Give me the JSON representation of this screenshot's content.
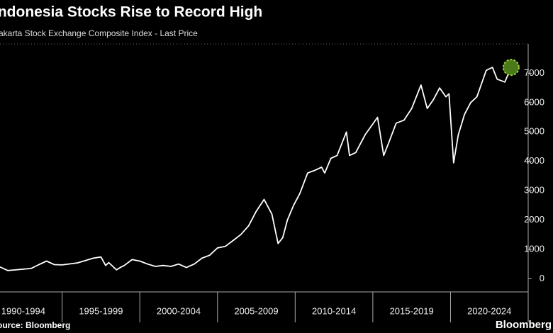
{
  "chart_data": {
    "type": "line",
    "title": "Indonesia Stocks Rise to Record High",
    "subtitle": "Jakarta Stock Exchange Composite Index - Last Price",
    "source": "Source: Bloomberg",
    "brand": "Bloomberg",
    "color": "#ffffff",
    "highlight_color": "#4a7a1a",
    "categories": [
      "1990-1994",
      "1995-1999",
      "2000-2004",
      "2005-2009",
      "2010-2014",
      "2015-2019",
      "2020-2024"
    ],
    "xticks": [
      1990,
      1995,
      2000,
      2005,
      2010,
      2015,
      2020,
      2025
    ],
    "xlim": [
      1991,
      2025
    ],
    "ylim": [
      -450,
      8000
    ],
    "yticks": [
      0,
      1000,
      2000,
      3000,
      4000,
      5000,
      6000,
      7000
    ],
    "x": [
      1991.0,
      1991.5,
      1992.0,
      1993.0,
      1993.5,
      1994.0,
      1994.5,
      1995.0,
      1996.0,
      1997.0,
      1997.5,
      1997.8,
      1998.0,
      1998.5,
      1998.8,
      1999.0,
      1999.5,
      2000.0,
      2000.5,
      2001.0,
      2001.5,
      2002.0,
      2002.5,
      2003.0,
      2003.5,
      2004.0,
      2004.5,
      2005.0,
      2005.5,
      2006.0,
      2006.5,
      2007.0,
      2007.5,
      2008.0,
      2008.2,
      2008.5,
      2008.9,
      2009.2,
      2009.5,
      2009.9,
      2010.3,
      2010.8,
      2011.3,
      2011.7,
      2011.9,
      2012.3,
      2012.7,
      2013.3,
      2013.5,
      2013.9,
      2014.5,
      2014.9,
      2015.3,
      2015.7,
      2016.0,
      2016.5,
      2017.0,
      2017.5,
      2018.1,
      2018.5,
      2018.9,
      2019.3,
      2019.7,
      2019.9,
      2020.2,
      2020.5,
      2020.9,
      2021.3,
      2021.7,
      2022.3,
      2022.7,
      2023.0,
      2023.5,
      2023.9
    ],
    "values": [
      400,
      280,
      300,
      350,
      480,
      600,
      480,
      470,
      540,
      700,
      740,
      450,
      550,
      300,
      400,
      450,
      650,
      600,
      500,
      420,
      450,
      420,
      500,
      380,
      500,
      700,
      800,
      1050,
      1100,
      1300,
      1500,
      1800,
      2300,
      2700,
      2500,
      2200,
      1200,
      1400,
      2000,
      2500,
      2900,
      3600,
      3700,
      3800,
      3600,
      4100,
      4200,
      5000,
      4200,
      4300,
      4900,
      5200,
      5500,
      4200,
      4600,
      5300,
      5400,
      5800,
      6600,
      5800,
      6100,
      6500,
      6200,
      6300,
      3950,
      4900,
      5600,
      6000,
      6200,
      7100,
      7200,
      6800,
      6700,
      7200
    ]
  }
}
